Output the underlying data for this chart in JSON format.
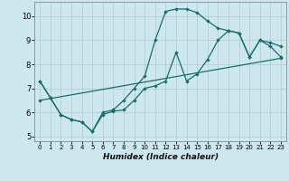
{
  "xlabel": "Humidex (Indice chaleur)",
  "xlim": [
    -0.5,
    23.5
  ],
  "ylim": [
    4.8,
    10.6
  ],
  "yticks": [
    5,
    6,
    7,
    8,
    9,
    10
  ],
  "xticks": [
    0,
    1,
    2,
    3,
    4,
    5,
    6,
    7,
    8,
    9,
    10,
    11,
    12,
    13,
    14,
    15,
    16,
    17,
    18,
    19,
    20,
    21,
    22,
    23
  ],
  "bg_color": "#cce8ee",
  "grid_color": "#b8cdd4",
  "line_color": "#1a6b6b",
  "line1_x": [
    0,
    1,
    2,
    3,
    4,
    5,
    6,
    7,
    8,
    9,
    10,
    11,
    12,
    13,
    14,
    15,
    16,
    17,
    18,
    19,
    20,
    21,
    22,
    23
  ],
  "line1_y": [
    7.3,
    6.6,
    5.9,
    5.7,
    5.6,
    5.2,
    6.0,
    6.1,
    6.5,
    7.0,
    7.5,
    9.0,
    10.2,
    10.3,
    10.3,
    10.15,
    9.8,
    9.5,
    9.4,
    9.3,
    8.3,
    9.0,
    8.9,
    8.75
  ],
  "line2_x": [
    0,
    1,
    2,
    3,
    4,
    5,
    6,
    7,
    8,
    9,
    10,
    11,
    12,
    13,
    14,
    15,
    16,
    17,
    18,
    19,
    20,
    21,
    22,
    23
  ],
  "line2_y": [
    7.3,
    6.6,
    5.9,
    5.7,
    5.6,
    5.2,
    5.9,
    6.05,
    6.1,
    6.5,
    7.0,
    7.1,
    7.3,
    8.5,
    7.3,
    7.6,
    8.2,
    9.0,
    9.4,
    9.3,
    8.3,
    9.0,
    8.75,
    8.3
  ],
  "line3_x": [
    0,
    23
  ],
  "line3_y": [
    6.5,
    8.25
  ]
}
